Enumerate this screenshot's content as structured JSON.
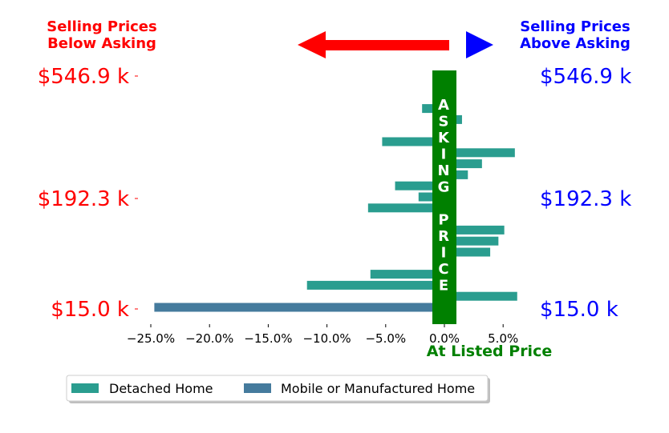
{
  "header": {
    "left_line1": "Selling Prices",
    "left_line2": "Below Asking",
    "right_line1": "Selling Prices",
    "right_line2": "Above Asking",
    "left_color": "#ff0000",
    "right_color": "#0000ff"
  },
  "price_labels": {
    "top": "$546.9 k",
    "mid": "$192.3 k",
    "bottom": "$15.0 k"
  },
  "asking_banner": {
    "letters": [
      "A",
      "S",
      "K",
      "I",
      "N",
      "G",
      "",
      "P",
      "R",
      "I",
      "C",
      "E"
    ],
    "color": "#008000"
  },
  "at_listed_label": "At Listed Price",
  "legend": {
    "items": [
      {
        "label": "Detached Home",
        "color": "#2a9d8f"
      },
      {
        "label": "Mobile or Manufactured Home",
        "color": "#457b9d"
      }
    ]
  },
  "chart_data": {
    "type": "bar",
    "orientation": "horizontal",
    "xlabel": "",
    "ylabel": "",
    "xlim": [
      -26,
      7
    ],
    "xticks": [
      -25,
      -20,
      -15,
      -10,
      -5,
      0,
      5
    ],
    "xtick_labels": [
      "−25.0%",
      "−20.0%",
      "−15.0%",
      "−10.0%",
      "−5.0%",
      "0.0%",
      "5.0%"
    ],
    "series": [
      {
        "name": "Detached Home",
        "color": "#2a9d8f"
      },
      {
        "name": "Mobile or Manufactured Home",
        "color": "#457b9d"
      }
    ],
    "bars": [
      {
        "series": 1,
        "value": -24.7
      },
      {
        "series": 0,
        "value": 6.2
      },
      {
        "series": 0,
        "value": -11.7
      },
      {
        "series": 0,
        "value": -6.3
      },
      {
        "series": 0,
        "value": 1.0
      },
      {
        "series": 0,
        "value": 3.9
      },
      {
        "series": 0,
        "value": 4.6
      },
      {
        "series": 0,
        "value": 5.1
      },
      {
        "series": 0,
        "value": 1.0
      },
      {
        "series": 0,
        "value": -6.5
      },
      {
        "series": 0,
        "value": -2.2
      },
      {
        "series": 0,
        "value": -4.2
      },
      {
        "series": 0,
        "value": 2.0
      },
      {
        "series": 0,
        "value": 3.2
      },
      {
        "series": 0,
        "value": 6.0
      },
      {
        "series": 0,
        "value": -5.3
      },
      {
        "series": 0,
        "value": 1.0
      },
      {
        "series": 0,
        "value": 1.5
      },
      {
        "series": 0,
        "value": -1.9
      },
      {
        "series": 0,
        "value": -1.0
      },
      {
        "series": 0,
        "value": 1.0
      }
    ]
  }
}
